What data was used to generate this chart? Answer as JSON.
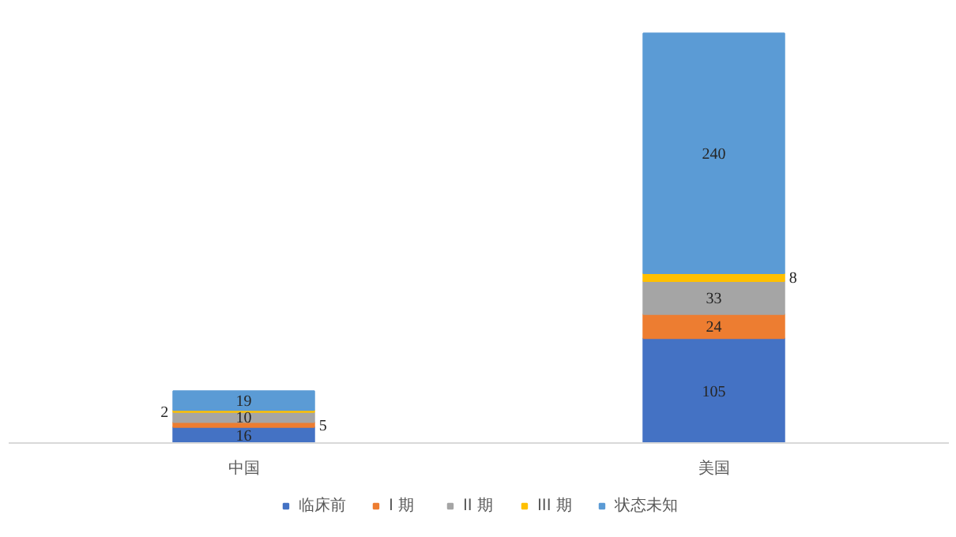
{
  "chart_data": {
    "type": "bar",
    "stacked": true,
    "categories": [
      "中国",
      "美国"
    ],
    "series": [
      {
        "name": "临床前",
        "color": "#4472c4",
        "values": [
          16,
          105
        ]
      },
      {
        "name": "I 期",
        "color": "#ed7d31",
        "values": [
          5,
          24
        ]
      },
      {
        "name": "II 期",
        "color": "#a5a5a5",
        "values": [
          10,
          33
        ]
      },
      {
        "name": "III 期",
        "color": "#ffc000",
        "values": [
          2,
          8
        ]
      },
      {
        "name": "状态未知",
        "color": "#5b9bd5",
        "values": [
          19,
          240
        ]
      }
    ],
    "data_labels": true,
    "legend": "bottom"
  }
}
